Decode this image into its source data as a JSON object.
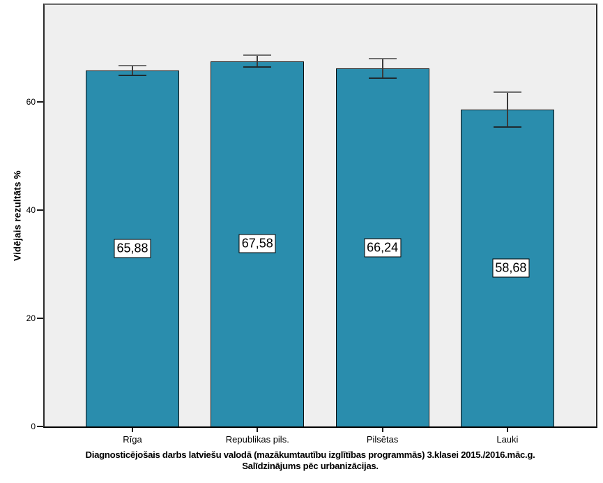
{
  "chart_data": {
    "type": "bar",
    "categories": [
      "Rīga",
      "Republikas pils.",
      "Pilsētas",
      "Lauki"
    ],
    "values": [
      65.88,
      67.58,
      66.24,
      58.68
    ],
    "value_labels": [
      "65,88",
      "67,58",
      "66,24",
      "58,68"
    ],
    "error_bars_plus_minus": [
      0.8,
      0.95,
      1.7,
      3.1
    ],
    "title_line1": "Diagnosticējošais darbs latviešu valodā (mazākumtautību izglītības programmās) 3.klasei 2015./2016.māc.g.",
    "title_line2": "Salīdzinājums pēc urbanizācijas.",
    "xlabel": "",
    "ylabel": "Vidējais rezultāts %",
    "yticks": [
      "0",
      "20",
      "40",
      "60"
    ],
    "ytick_values": [
      0,
      20,
      40,
      60
    ],
    "ylim": [
      0,
      78
    ],
    "grid": false,
    "legend_position": "none",
    "bar_color": "#2A8DAD",
    "bar_border_color": "#0E0E0E",
    "plot_background": "#EFEFEF",
    "error_bar_color": "#3A3A3A"
  }
}
